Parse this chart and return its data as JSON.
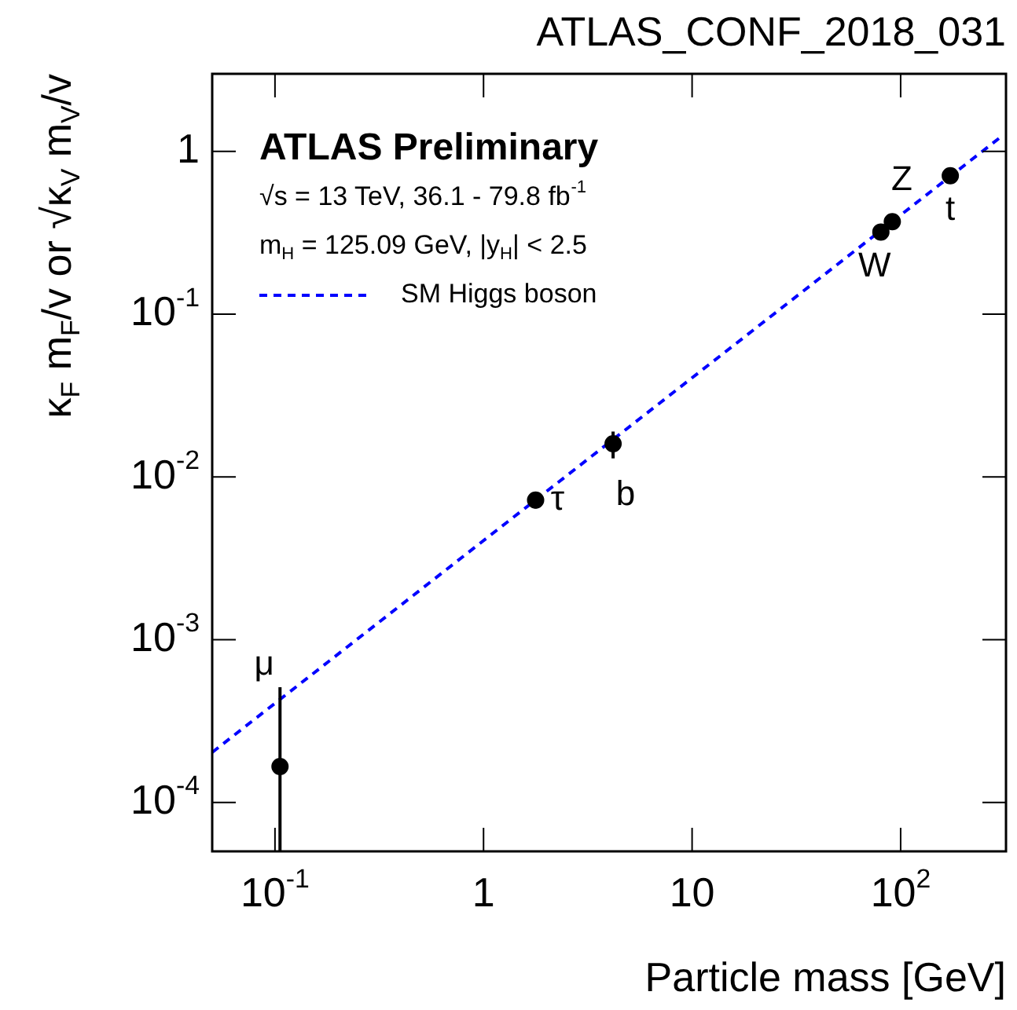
{
  "chart_data": {
    "type": "scatter",
    "title": "ATLAS_CONF_2018_031",
    "xlabel": "Particle mass [GeV]",
    "ylabel": "κ$_{F}$ m$_{F}$/v or √κ$_{V}$ m$_{V}$/v",
    "log": "xy",
    "grid": false,
    "legend": "top left",
    "xlim": [
      0.05,
      320
    ],
    "ylim": [
      5e-05,
      3
    ],
    "xticks": [
      {
        "value": 0.1,
        "label": "10$^{-1}$"
      },
      1,
      10,
      {
        "value": 100,
        "label": "10$^{2}$"
      }
    ],
    "yticks": [
      {
        "value": 0.0001,
        "label": "10$^{-4}$"
      },
      {
        "value": 0.001,
        "label": "10$^{-3}$"
      },
      {
        "value": 0.01,
        "label": "10$^{-2}$"
      },
      {
        "value": 0.1,
        "label": "10$^{-1}$"
      },
      1
    ],
    "annotations": [
      "ATLAS Preliminary",
      "√s = 13 TeV, 36.1 - 79.8 fb$^{-1}$",
      "m$_{H}$ = 125.09 GeV, |y$_{H}$| < 2.5",
      {
        "text": "μ",
        "x": 0.1057,
        "y": 0.00051
      },
      {
        "text": "τ",
        "x": 1.777,
        "y": 0.0072
      },
      {
        "text": "b",
        "x": 4.18,
        "y": 0.016
      },
      {
        "text": "W",
        "x": 80.4,
        "y": 0.32
      },
      {
        "text": "Z",
        "x": 91.2,
        "y": 0.37
      },
      {
        "text": "t",
        "x": 173,
        "y": 0.71
      }
    ],
    "series": [
      {
        "color": "#000000",
        "marker": "circle",
        "x": [
          0.1057,
          1.777,
          4.18,
          80.4,
          91.2,
          173
        ],
        "values": [
          0.000166,
          0.0072,
          0.016,
          0.32,
          0.37,
          0.71
        ],
        "errors": [
          [
            5e-05,
            0.00051
          ],
          0.0008,
          0.003,
          null,
          null,
          null
        ]
      },
      {
        "type": "line",
        "name": "SM Higgs boson",
        "color": "#0000ff",
        "line_style": "dashed",
        "x": [
          0.05,
          300
        ],
        "values": [
          0.000203,
          1.22
        ]
      }
    ]
  }
}
